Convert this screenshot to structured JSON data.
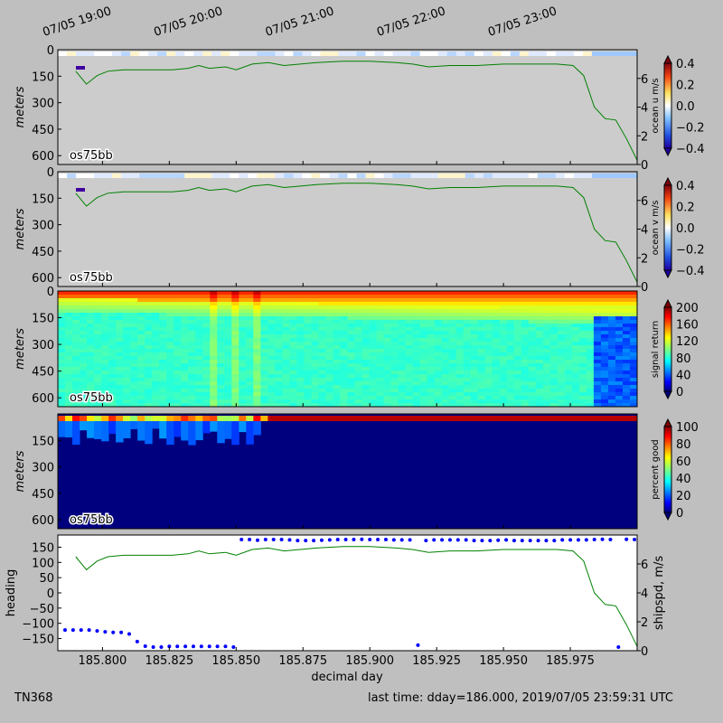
{
  "footer": {
    "cruise": "TN368",
    "last_time": "last time: dday=186.000,  2019/07/05 23:59:31 UTC"
  },
  "chart_data": {
    "type": "heatmap",
    "top_time_ticks": [
      "07/05 19:00",
      "07/05 20:00",
      "07/05 21:00",
      "07/05 22:00",
      "07/05 23:00"
    ],
    "top_time_tick_dday": [
      185.7917,
      185.8333,
      185.875,
      185.9167,
      185.9583
    ],
    "xlim": [
      185.7833,
      186.0
    ],
    "xticks": [
      185.8,
      185.825,
      185.85,
      185.875,
      185.9,
      185.925,
      185.95,
      185.975
    ],
    "xlabel": "decimal day",
    "depth_ticks": [
      0,
      150,
      300,
      450,
      600
    ],
    "depth_ticks_short": [
      150,
      300,
      450,
      600
    ],
    "depth_ylim": [
      0,
      650
    ],
    "speed_ticks": [
      0,
      2,
      4,
      6
    ],
    "speed_ylim": [
      0,
      8
    ],
    "speed_x": [
      185.79,
      185.794,
      185.798,
      185.802,
      185.808,
      185.814,
      185.82,
      185.826,
      185.832,
      185.836,
      185.84,
      185.846,
      185.85,
      185.856,
      185.862,
      185.868,
      185.874,
      185.88,
      185.89,
      185.9,
      185.91,
      185.916,
      185.922,
      185.93,
      185.94,
      185.95,
      185.96,
      185.97,
      185.976,
      185.98,
      185.984,
      185.988,
      185.992,
      185.996,
      186.0
    ],
    "speed_values": [
      6.5,
      5.6,
      6.2,
      6.5,
      6.6,
      6.6,
      6.6,
      6.6,
      6.7,
      6.9,
      6.7,
      6.8,
      6.6,
      7.0,
      7.1,
      6.9,
      7.0,
      7.1,
      7.2,
      7.2,
      7.1,
      7.0,
      6.8,
      6.9,
      6.9,
      7.0,
      7.0,
      7.0,
      6.9,
      6.2,
      4.0,
      3.2,
      3.1,
      1.8,
      0.3
    ],
    "panels": [
      {
        "label": "os75bb",
        "ylabel": "meters",
        "colorbar_label": "ocean u m/s",
        "colorbar_ticks": [
          "0.4",
          "0.2",
          "0.0",
          "−0.2",
          "−0.4"
        ],
        "colormap": "diverging",
        "fill": "gray"
      },
      {
        "label": "os75bb",
        "ylabel": "meters",
        "colorbar_label": "ocean v m/s",
        "colorbar_ticks": [
          "0.4",
          "0.2",
          "0.0",
          "−0.2",
          "−0.4"
        ],
        "colormap": "diverging",
        "fill": "gray"
      },
      {
        "label": "os75bb",
        "ylabel": "meters",
        "colorbar_label": "signal return",
        "colorbar_ticks": [
          "200",
          "160",
          "120",
          "80",
          "40",
          "0"
        ],
        "colormap": "jet",
        "fill": "signal"
      },
      {
        "label": "os75bb",
        "ylabel": "meters",
        "colorbar_label": "percent good",
        "colorbar_ticks": [
          "100",
          "80",
          "60",
          "40",
          "20",
          "0"
        ],
        "colormap": "jet",
        "fill": "pgood"
      }
    ],
    "bottom_panel": {
      "heading_label": "heading",
      "shipspd_label": "shipspd, m/s",
      "heading_ticks": [
        "150",
        "100",
        "50",
        "0",
        "−50",
        "−100",
        "−150"
      ],
      "heading_tick_values": [
        150,
        100,
        50,
        0,
        -50,
        -100,
        -150
      ],
      "heading_ylim": [
        -190,
        190
      ],
      "heading_x": [
        185.786,
        185.789,
        185.792,
        185.795,
        185.798,
        185.801,
        185.804,
        185.807,
        185.81,
        185.813,
        185.816,
        185.819,
        185.822,
        185.825,
        185.828,
        185.831,
        185.834,
        185.837,
        185.84,
        185.843,
        185.846,
        185.849,
        185.852,
        185.855,
        185.858,
        185.861,
        185.864,
        185.867,
        185.87,
        185.873,
        185.876,
        185.879,
        185.882,
        185.885,
        185.888,
        185.891,
        185.894,
        185.897,
        185.9,
        185.903,
        185.906,
        185.909,
        185.912,
        185.915,
        185.918,
        185.921,
        185.924,
        185.927,
        185.93,
        185.933,
        185.936,
        185.939,
        185.942,
        185.945,
        185.948,
        185.951,
        185.954,
        185.957,
        185.96,
        185.963,
        185.966,
        185.969,
        185.972,
        185.975,
        185.978,
        185.981,
        185.984,
        185.987,
        185.99,
        185.993,
        185.996,
        185.999
      ],
      "heading_values": [
        -122,
        -122,
        -122,
        -122,
        -125,
        -128,
        -130,
        -130,
        -135,
        -160,
        -175,
        -178,
        -178,
        -176,
        -176,
        -176,
        -176,
        -176,
        -176,
        -176,
        -176,
        -178,
        175,
        175,
        173,
        175,
        175,
        175,
        174,
        172,
        172,
        172,
        173,
        174,
        175,
        175,
        175,
        176,
        175,
        175,
        175,
        174,
        174,
        174,
        -172,
        172,
        174,
        174,
        174,
        174,
        174,
        172,
        172,
        172,
        173,
        174,
        172,
        172,
        172,
        172,
        172,
        172,
        174,
        174,
        174,
        174,
        175,
        176,
        175,
        -178,
        176,
        175
      ]
    }
  }
}
